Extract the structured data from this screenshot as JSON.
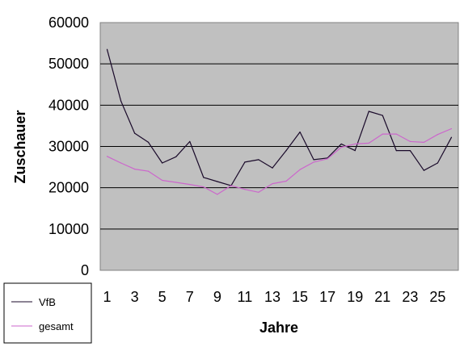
{
  "chart_data": {
    "type": "line",
    "title": "",
    "xlabel": "Jahre",
    "ylabel": "Zuschauer",
    "x": [
      1,
      2,
      3,
      4,
      5,
      6,
      7,
      8,
      9,
      10,
      11,
      12,
      13,
      14,
      15,
      16,
      17,
      18,
      19,
      20,
      21,
      22,
      23,
      24,
      25,
      26
    ],
    "x_tick_labels": [
      "1",
      "3",
      "5",
      "7",
      "9",
      "11",
      "13",
      "15",
      "17",
      "19",
      "21",
      "23",
      "25"
    ],
    "y_tick_labels": [
      "0",
      "10000",
      "20000",
      "30000",
      "40000",
      "50000",
      "60000"
    ],
    "ylim": [
      0,
      60000
    ],
    "grid": true,
    "legend_position": "bottom-left",
    "plot_background": "#c0c0c0",
    "series": [
      {
        "name": "VfB",
        "color": "#1a0a2a",
        "values": [
          53500,
          41000,
          33200,
          31000,
          26000,
          27500,
          31200,
          22500,
          21500,
          20500,
          26200,
          26800,
          24800,
          29000,
          33500,
          26800,
          27200,
          30600,
          29000,
          38500,
          37500,
          29000,
          29000,
          24200,
          26000,
          32200
        ]
      },
      {
        "name": "gesamt",
        "color": "#cc66cc",
        "values": [
          27600,
          26000,
          24500,
          24000,
          21800,
          21300,
          20800,
          20200,
          18400,
          20500,
          19600,
          18900,
          21000,
          21600,
          24400,
          26200,
          27000,
          29800,
          30600,
          30800,
          33000,
          33000,
          31200,
          31000,
          32900,
          34300
        ]
      }
    ]
  }
}
